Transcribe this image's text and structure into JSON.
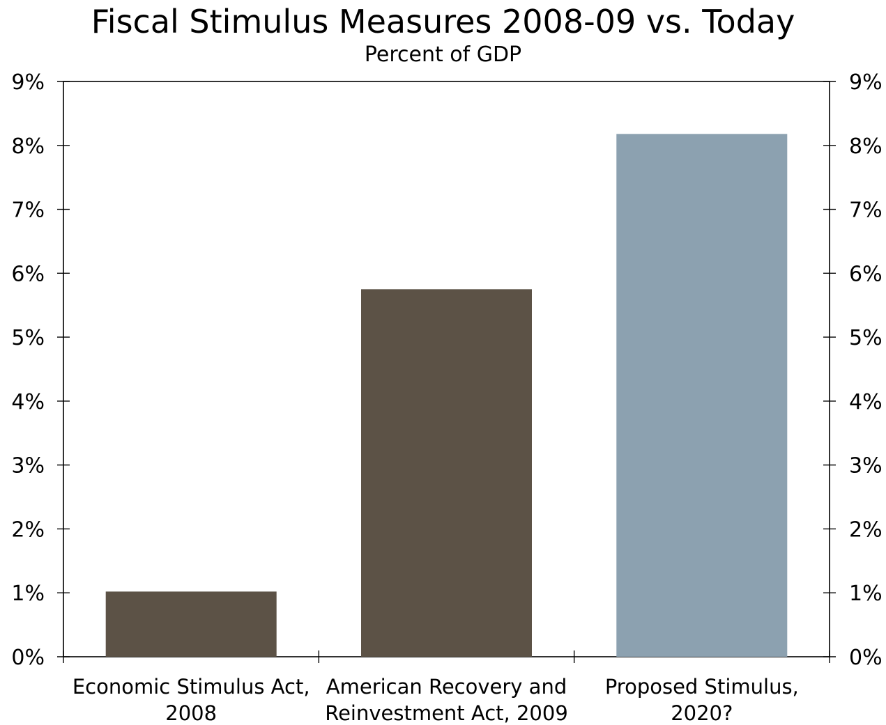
{
  "chart_data": {
    "type": "bar",
    "title": "Fiscal Stimulus Measures 2008-09 vs. Today",
    "subtitle": "Percent of GDP",
    "categories": [
      [
        "Economic Stimulus Act,",
        "2008"
      ],
      [
        "American Recovery and",
        "Reinvestment Act, 2009"
      ],
      [
        "Proposed Stimulus,",
        "2020?"
      ]
    ],
    "values": [
      1.02,
      5.75,
      8.18
    ],
    "bar_colors": [
      "#5c5246",
      "#5c5246",
      "#8ca1b0"
    ],
    "ylim": [
      0,
      9
    ],
    "yticks": [
      0,
      1,
      2,
      3,
      4,
      5,
      6,
      7,
      8,
      9
    ],
    "ytick_labels": [
      "0%",
      "1%",
      "2%",
      "3%",
      "4%",
      "5%",
      "6%",
      "7%",
      "8%",
      "9%"
    ],
    "right_axis": true,
    "grid": false,
    "legend": "none"
  }
}
